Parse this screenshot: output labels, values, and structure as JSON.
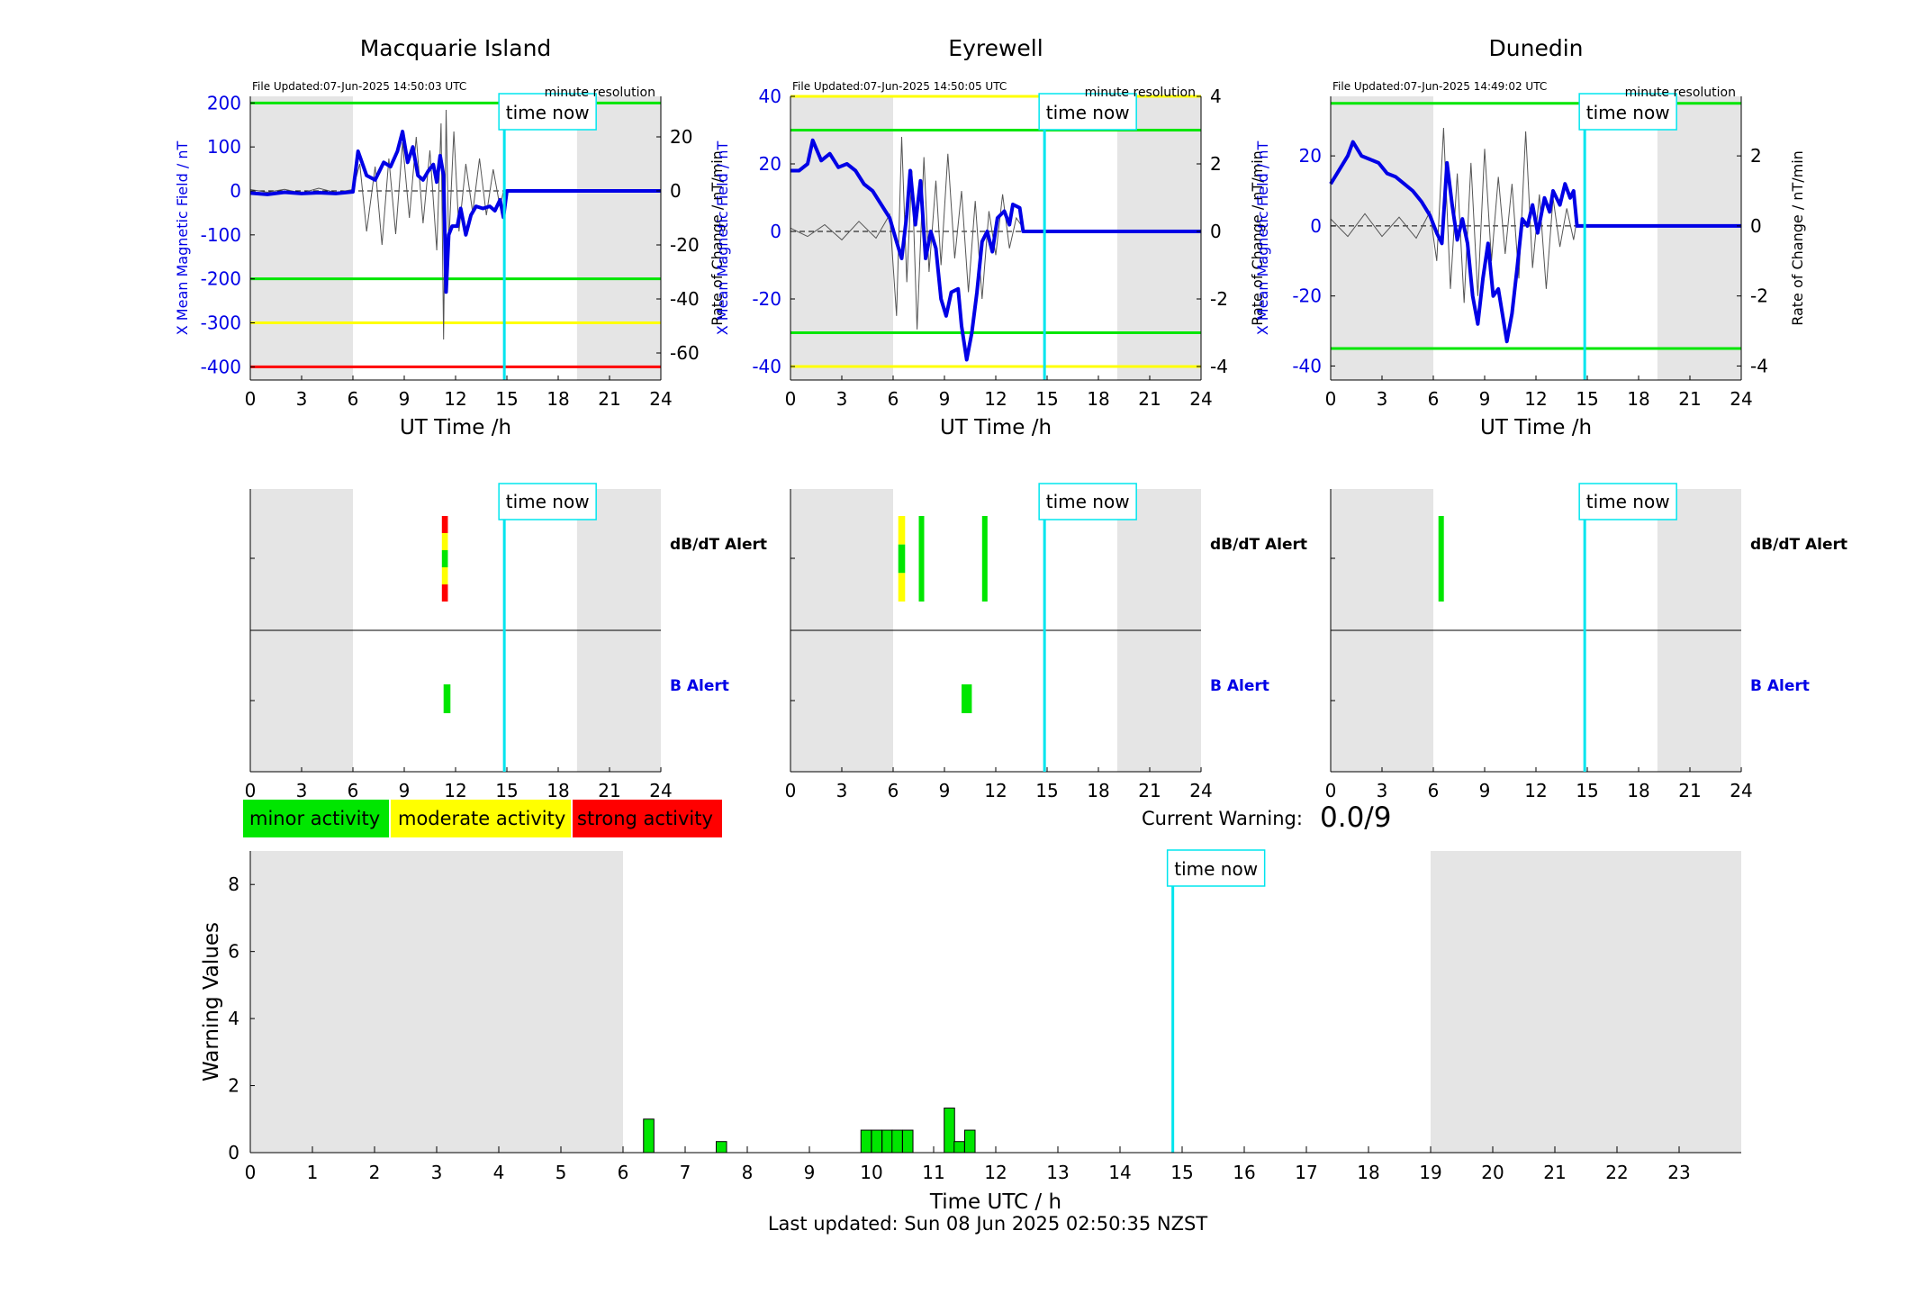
{
  "stations": [
    {
      "name": "Macquarie Island",
      "file_updated": "File Updated:07-Jun-2025 14:50:03 UTC",
      "resolution": "minute resolution",
      "left_axis": {
        "label": "X Mean Magnetic Field / nT",
        "lim": [
          -430,
          215
        ],
        "ticks": [
          200,
          100,
          0,
          -100,
          -200,
          -300,
          -400
        ]
      },
      "right_axis": {
        "label": "Rate of Change / nT/min",
        "lim": [
          -70,
          35
        ],
        "ticks": [
          20,
          0,
          -20,
          -40,
          -60
        ]
      },
      "thresholds": [
        {
          "value": 200,
          "color": "#00e600"
        },
        {
          "value": -200,
          "color": "#00e600"
        },
        {
          "value": -300,
          "color": "#ffff00"
        },
        {
          "value": -400,
          "color": "#ff0000"
        }
      ],
      "mean_field": [
        [
          0,
          -5
        ],
        [
          1,
          -8
        ],
        [
          2,
          -3
        ],
        [
          3,
          -6
        ],
        [
          4,
          -4
        ],
        [
          5,
          -6
        ],
        [
          6,
          -2
        ],
        [
          6.3,
          90
        ],
        [
          6.8,
          35
        ],
        [
          7.3,
          25
        ],
        [
          7.8,
          65
        ],
        [
          8.2,
          55
        ],
        [
          8.6,
          90
        ],
        [
          8.9,
          135
        ],
        [
          9.2,
          65
        ],
        [
          9.5,
          100
        ],
        [
          9.8,
          35
        ],
        [
          10.1,
          25
        ],
        [
          10.4,
          45
        ],
        [
          10.7,
          60
        ],
        [
          10.9,
          20
        ],
        [
          11.1,
          80
        ],
        [
          11.3,
          35
        ],
        [
          11.45,
          -230
        ],
        [
          11.6,
          -100
        ],
        [
          11.8,
          -80
        ],
        [
          12.1,
          -80
        ],
        [
          12.3,
          -40
        ],
        [
          12.6,
          -100
        ],
        [
          12.9,
          -55
        ],
        [
          13.2,
          -35
        ],
        [
          13.6,
          -40
        ],
        [
          14,
          -35
        ],
        [
          14.3,
          -45
        ],
        [
          14.6,
          -20
        ],
        [
          14.8,
          -60
        ],
        [
          15,
          0
        ],
        [
          24,
          0
        ]
      ],
      "rate_of_change": [
        [
          0,
          0.5
        ],
        [
          1,
          -0.5
        ],
        [
          2,
          0.6
        ],
        [
          3,
          -0.8
        ],
        [
          4,
          1
        ],
        [
          5,
          -0.6
        ],
        [
          6,
          0.5
        ],
        [
          6.4,
          10
        ],
        [
          6.8,
          -15
        ],
        [
          7.3,
          9
        ],
        [
          7.7,
          -20
        ],
        [
          8.1,
          12
        ],
        [
          8.5,
          -16
        ],
        [
          8.9,
          18
        ],
        [
          9.3,
          -10
        ],
        [
          9.7,
          20
        ],
        [
          10.1,
          -12
        ],
        [
          10.5,
          15
        ],
        [
          10.9,
          -22
        ],
        [
          11.15,
          25
        ],
        [
          11.3,
          -55
        ],
        [
          11.45,
          30
        ],
        [
          11.6,
          -20
        ],
        [
          11.9,
          22
        ],
        [
          12.2,
          -15
        ],
        [
          12.6,
          10
        ],
        [
          13,
          -8
        ],
        [
          13.4,
          12
        ],
        [
          13.8,
          -9
        ],
        [
          14.2,
          8
        ],
        [
          14.6,
          -6
        ],
        [
          14.9,
          3
        ]
      ],
      "alerts_dbdt": [
        {
          "start": 11.2,
          "end": 11.55,
          "colors": [
            "#ff0000",
            "#ffff00",
            "#00e600",
            "#ffff00",
            "#ff0000"
          ]
        }
      ],
      "alerts_b": [
        {
          "start": 11.3,
          "end": 11.7,
          "color": "#00e600"
        }
      ]
    },
    {
      "name": "Eyrewell",
      "file_updated": "File Updated:07-Jun-2025 14:50:05 UTC",
      "resolution": "minute resolution",
      "left_axis": {
        "label": "X Mean Magnetic Field / nT",
        "lim": [
          -44,
          40
        ],
        "ticks": [
          40,
          20,
          0,
          -20,
          -40
        ]
      },
      "right_axis": {
        "label": "Rate of Change / nT/min",
        "lim": [
          -4.4,
          4
        ],
        "ticks": [
          4,
          2,
          0,
          -2,
          -4
        ]
      },
      "thresholds": [
        {
          "value": 40,
          "color": "#ffff00"
        },
        {
          "value": 30,
          "color": "#00e600"
        },
        {
          "value": -30,
          "color": "#00e600"
        },
        {
          "value": -40,
          "color": "#ffff00"
        }
      ],
      "mean_field": [
        [
          0,
          18
        ],
        [
          0.5,
          18
        ],
        [
          1,
          20
        ],
        [
          1.3,
          27
        ],
        [
          1.8,
          21
        ],
        [
          2.3,
          23
        ],
        [
          2.8,
          19
        ],
        [
          3.3,
          20
        ],
        [
          3.8,
          18
        ],
        [
          4.3,
          14
        ],
        [
          4.8,
          12
        ],
        [
          5.3,
          8
        ],
        [
          5.8,
          4
        ],
        [
          6.2,
          -3
        ],
        [
          6.5,
          -8
        ],
        [
          6.8,
          5
        ],
        [
          7,
          18
        ],
        [
          7.3,
          2
        ],
        [
          7.6,
          15
        ],
        [
          7.9,
          -8
        ],
        [
          8.2,
          0
        ],
        [
          8.5,
          -5
        ],
        [
          8.8,
          -20
        ],
        [
          9.1,
          -25
        ],
        [
          9.4,
          -18
        ],
        [
          9.8,
          -17
        ],
        [
          10,
          -28
        ],
        [
          10.3,
          -38
        ],
        [
          10.6,
          -30
        ],
        [
          10.9,
          -18
        ],
        [
          11.2,
          -3
        ],
        [
          11.5,
          0
        ],
        [
          11.8,
          -6
        ],
        [
          12.1,
          4
        ],
        [
          12.5,
          6
        ],
        [
          12.8,
          2
        ],
        [
          13,
          8
        ],
        [
          13.4,
          7
        ],
        [
          13.6,
          0
        ],
        [
          24,
          0
        ]
      ],
      "rate_of_change": [
        [
          0,
          0.1
        ],
        [
          1,
          -0.15
        ],
        [
          2,
          0.2
        ],
        [
          3,
          -0.25
        ],
        [
          4,
          0.3
        ],
        [
          5,
          -0.2
        ],
        [
          5.8,
          0.5
        ],
        [
          6.2,
          -2.5
        ],
        [
          6.5,
          2.8
        ],
        [
          6.8,
          -1.5
        ],
        [
          7.1,
          1.8
        ],
        [
          7.4,
          -2.9
        ],
        [
          7.8,
          2.2
        ],
        [
          8.1,
          -1.2
        ],
        [
          8.5,
          1.5
        ],
        [
          8.8,
          -1
        ],
        [
          9.2,
          2.3
        ],
        [
          9.6,
          -0.8
        ],
        [
          10,
          1.2
        ],
        [
          10.4,
          -1.8
        ],
        [
          10.8,
          0.9
        ],
        [
          11.2,
          -2
        ],
        [
          11.6,
          0.6
        ],
        [
          12,
          -0.7
        ],
        [
          12.4,
          1.1
        ],
        [
          12.8,
          -0.5
        ],
        [
          13.2,
          0.4
        ],
        [
          13.6,
          0.1
        ]
      ],
      "alerts_dbdt": [
        {
          "start": 6.3,
          "end": 6.7,
          "colors": [
            "#ffff00",
            "#00e600",
            "#ffff00"
          ]
        },
        {
          "start": 7.5,
          "end": 7.75,
          "colors": [
            "#00e600"
          ]
        },
        {
          "start": 11.2,
          "end": 11.45,
          "colors": [
            "#00e600"
          ]
        }
      ],
      "alerts_b": [
        {
          "start": 10,
          "end": 10.6,
          "color": "#00e600"
        }
      ]
    },
    {
      "name": "Dunedin",
      "file_updated": "File Updated:07-Jun-2025 14:49:02 UTC",
      "resolution": "minute resolution",
      "left_axis": {
        "label": "X Mean Magnetic Field / nT",
        "lim": [
          -44,
          37
        ],
        "ticks": [
          20,
          0,
          -20,
          -40
        ]
      },
      "right_axis": {
        "label": "Rate of Change / nT/min",
        "lim": [
          -4.4,
          3.7
        ],
        "ticks": [
          2,
          0,
          -2,
          -4
        ]
      },
      "thresholds": [
        {
          "value": 35,
          "color": "#00e600"
        },
        {
          "value": -35,
          "color": "#00e600"
        }
      ],
      "mean_field": [
        [
          0,
          12
        ],
        [
          0.5,
          16
        ],
        [
          1,
          20
        ],
        [
          1.3,
          24
        ],
        [
          1.8,
          20
        ],
        [
          2.3,
          19
        ],
        [
          2.8,
          18
        ],
        [
          3.3,
          15
        ],
        [
          3.8,
          14
        ],
        [
          4.3,
          12
        ],
        [
          4.8,
          10
        ],
        [
          5.3,
          7
        ],
        [
          5.8,
          3
        ],
        [
          6.2,
          -2
        ],
        [
          6.5,
          -5
        ],
        [
          6.8,
          18
        ],
        [
          7.1,
          6
        ],
        [
          7.4,
          -4
        ],
        [
          7.7,
          2
        ],
        [
          8,
          -5
        ],
        [
          8.3,
          -20
        ],
        [
          8.6,
          -28
        ],
        [
          8.9,
          -15
        ],
        [
          9.2,
          -5
        ],
        [
          9.5,
          -20
        ],
        [
          9.8,
          -18
        ],
        [
          10,
          -24
        ],
        [
          10.3,
          -33
        ],
        [
          10.6,
          -25
        ],
        [
          10.9,
          -12
        ],
        [
          11.2,
          2
        ],
        [
          11.5,
          0
        ],
        [
          11.8,
          6
        ],
        [
          12.1,
          -2
        ],
        [
          12.5,
          8
        ],
        [
          12.8,
          4
        ],
        [
          13,
          10
        ],
        [
          13.4,
          6
        ],
        [
          13.7,
          12
        ],
        [
          14,
          8
        ],
        [
          14.2,
          10
        ],
        [
          14.4,
          0
        ],
        [
          24,
          0
        ]
      ],
      "rate_of_change": [
        [
          0,
          0.2
        ],
        [
          1,
          -0.3
        ],
        [
          2,
          0.35
        ],
        [
          3,
          -0.3
        ],
        [
          4,
          0.25
        ],
        [
          5,
          -0.35
        ],
        [
          5.8,
          0.4
        ],
        [
          6.2,
          -1
        ],
        [
          6.6,
          2.8
        ],
        [
          7,
          -1.8
        ],
        [
          7.4,
          1.5
        ],
        [
          7.8,
          -2.2
        ],
        [
          8.2,
          1.8
        ],
        [
          8.6,
          -2
        ],
        [
          9,
          2.2
        ],
        [
          9.4,
          -1
        ],
        [
          9.8,
          1.4
        ],
        [
          10.2,
          -0.8
        ],
        [
          10.6,
          1.2
        ],
        [
          11,
          -1.5
        ],
        [
          11.4,
          2.7
        ],
        [
          11.8,
          -1.2
        ],
        [
          12.2,
          0.9
        ],
        [
          12.6,
          -1.8
        ],
        [
          13,
          0.8
        ],
        [
          13.4,
          -0.6
        ],
        [
          13.8,
          0.5
        ],
        [
          14.2,
          -0.4
        ],
        [
          14.4,
          0.2
        ]
      ],
      "alerts_dbdt": [
        {
          "start": 6.3,
          "end": 6.6,
          "colors": [
            "#00e600"
          ]
        }
      ],
      "alerts_b": []
    }
  ],
  "time_now_hours": 14.85,
  "time_now_label": "time now",
  "daylight_shading": [
    [
      0,
      6
    ],
    [
      19.1,
      24
    ]
  ],
  "top_xlabel": "UT Time /h",
  "top_xticks": [
    0,
    3,
    6,
    9,
    12,
    15,
    18,
    21,
    24
  ],
  "alert_labels": {
    "dbdt": "dB/dT Alert",
    "b": "B Alert"
  },
  "legend": {
    "minor": "minor activity",
    "moderate": "moderate activity",
    "strong": "strong activity"
  },
  "current_warning": {
    "label": "Current Warning:",
    "value": "0.0/9"
  },
  "chart_data": {
    "type": "bar",
    "title": "",
    "xlabel": "Time UTC / h",
    "ylabel": "Warning Values",
    "xlim": [
      0,
      24
    ],
    "ylim": [
      0,
      9
    ],
    "x_ticks": [
      0,
      1,
      2,
      3,
      4,
      5,
      6,
      7,
      8,
      9,
      10,
      11,
      12,
      13,
      14,
      15,
      16,
      17,
      18,
      19,
      20,
      21,
      22,
      23
    ],
    "y_ticks": [
      0,
      2,
      4,
      6,
      8
    ],
    "bar_width": 0.167,
    "bars": [
      {
        "x": 6.33,
        "value": 1.0
      },
      {
        "x": 7.5,
        "value": 0.33
      },
      {
        "x": 9.83,
        "value": 0.67
      },
      {
        "x": 10.0,
        "value": 0.67
      },
      {
        "x": 10.17,
        "value": 0.67
      },
      {
        "x": 10.33,
        "value": 0.67
      },
      {
        "x": 10.5,
        "value": 0.67
      },
      {
        "x": 11.17,
        "value": 1.33
      },
      {
        "x": 11.33,
        "value": 0.33
      },
      {
        "x": 11.5,
        "value": 0.67
      }
    ],
    "time_now": 14.85,
    "shading": [
      [
        0,
        6
      ],
      [
        19,
        24
      ]
    ]
  },
  "last_updated": "Last updated: Sun 08 Jun 2025 02:50:35 NZST"
}
